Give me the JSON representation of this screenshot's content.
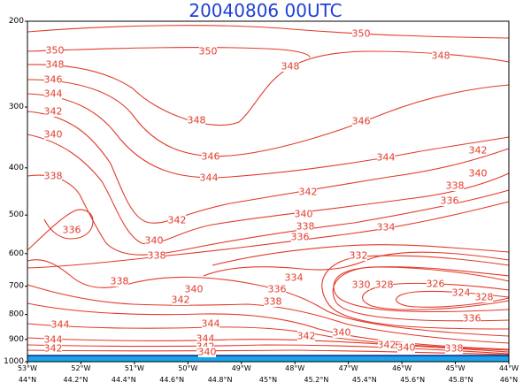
{
  "chart_data": {
    "type": "contour",
    "title": "20040806 00UTC",
    "y_axis": {
      "ticks": [
        200,
        300,
        400,
        500,
        600,
        700,
        800,
        900,
        1000
      ],
      "log_scale": true,
      "reversed": true,
      "ylim": [
        200,
        1000
      ]
    },
    "x_axis": {
      "lon_labels": [
        "53°W",
        "52°W",
        "51°W",
        "50°W",
        "49°W",
        "48°W",
        "47°W",
        "46°W",
        "45°W",
        "44°W"
      ],
      "lat_labels": [
        "44°N",
        "44.2°N",
        "44.4°N",
        "44.6°N",
        "44.8°N",
        "45°N",
        "45.2°N",
        "45.4°N",
        "45.6°N",
        "45.8°N",
        "46°N"
      ]
    },
    "colors": {
      "contour": "#e23a2a",
      "title": "#1f3fd6",
      "surface": "#1aa3e8",
      "axis": "#000000"
    },
    "contour_labels": [
      {
        "text": "350",
        "x": 62,
        "y": 57
      },
      {
        "text": "350",
        "x": 235,
        "y": 58
      },
      {
        "text": "350",
        "x": 408,
        "y": 38
      },
      {
        "text": "348",
        "x": 62,
        "y": 73
      },
      {
        "text": "348",
        "x": 328,
        "y": 75
      },
      {
        "text": "348",
        "x": 498,
        "y": 63
      },
      {
        "text": "348",
        "x": 222,
        "y": 136
      },
      {
        "text": "346",
        "x": 60,
        "y": 90
      },
      {
        "text": "346",
        "x": 408,
        "y": 137
      },
      {
        "text": "346",
        "x": 238,
        "y": 177
      },
      {
        "text": "344",
        "x": 60,
        "y": 106
      },
      {
        "text": "344",
        "x": 436,
        "y": 178
      },
      {
        "text": "344",
        "x": 236,
        "y": 201
      },
      {
        "text": "344",
        "x": 68,
        "y": 367
      },
      {
        "text": "344",
        "x": 238,
        "y": 366
      },
      {
        "text": "344",
        "x": 60,
        "y": 384
      },
      {
        "text": "344",
        "x": 232,
        "y": 383
      },
      {
        "text": "342",
        "x": 60,
        "y": 126
      },
      {
        "text": "342",
        "x": 540,
        "y": 170
      },
      {
        "text": "342",
        "x": 348,
        "y": 217
      },
      {
        "text": "342",
        "x": 200,
        "y": 249
      },
      {
        "text": "342",
        "x": 204,
        "y": 339
      },
      {
        "text": "342",
        "x": 60,
        "y": 394
      },
      {
        "text": "342",
        "x": 346,
        "y": 380
      },
      {
        "text": "342",
        "x": 437,
        "y": 390
      },
      {
        "text": "342",
        "x": 232,
        "y": 392
      },
      {
        "text": "340",
        "x": 60,
        "y": 152
      },
      {
        "text": "340",
        "x": 540,
        "y": 196
      },
      {
        "text": "340",
        "x": 343,
        "y": 242
      },
      {
        "text": "340",
        "x": 174,
        "y": 272
      },
      {
        "text": "340",
        "x": 219,
        "y": 327
      },
      {
        "text": "340",
        "x": 386,
        "y": 376
      },
      {
        "text": "340",
        "x": 459,
        "y": 393
      },
      {
        "text": "340",
        "x": 234,
        "y": 398
      },
      {
        "text": "338",
        "x": 60,
        "y": 199
      },
      {
        "text": "338",
        "x": 514,
        "y": 210
      },
      {
        "text": "338",
        "x": 345,
        "y": 256
      },
      {
        "text": "338",
        "x": 177,
        "y": 289
      },
      {
        "text": "338",
        "x": 135,
        "y": 318
      },
      {
        "text": "338",
        "x": 308,
        "y": 341
      },
      {
        "text": "338",
        "x": 513,
        "y": 394
      },
      {
        "text": "336",
        "x": 81,
        "y": 260
      },
      {
        "text": "336",
        "x": 508,
        "y": 227
      },
      {
        "text": "336",
        "x": 339,
        "y": 268
      },
      {
        "text": "336",
        "x": 313,
        "y": 327
      },
      {
        "text": "336",
        "x": 533,
        "y": 360
      },
      {
        "text": "334",
        "x": 436,
        "y": 257
      },
      {
        "text": "334",
        "x": 332,
        "y": 314
      },
      {
        "text": "332",
        "x": 405,
        "y": 289
      },
      {
        "text": "330",
        "x": 408,
        "y": 322
      },
      {
        "text": "328",
        "x": 434,
        "y": 322
      },
      {
        "text": "328",
        "x": 547,
        "y": 336
      },
      {
        "text": "326",
        "x": 492,
        "y": 321
      },
      {
        "text": "324",
        "x": 521,
        "y": 331
      }
    ]
  }
}
